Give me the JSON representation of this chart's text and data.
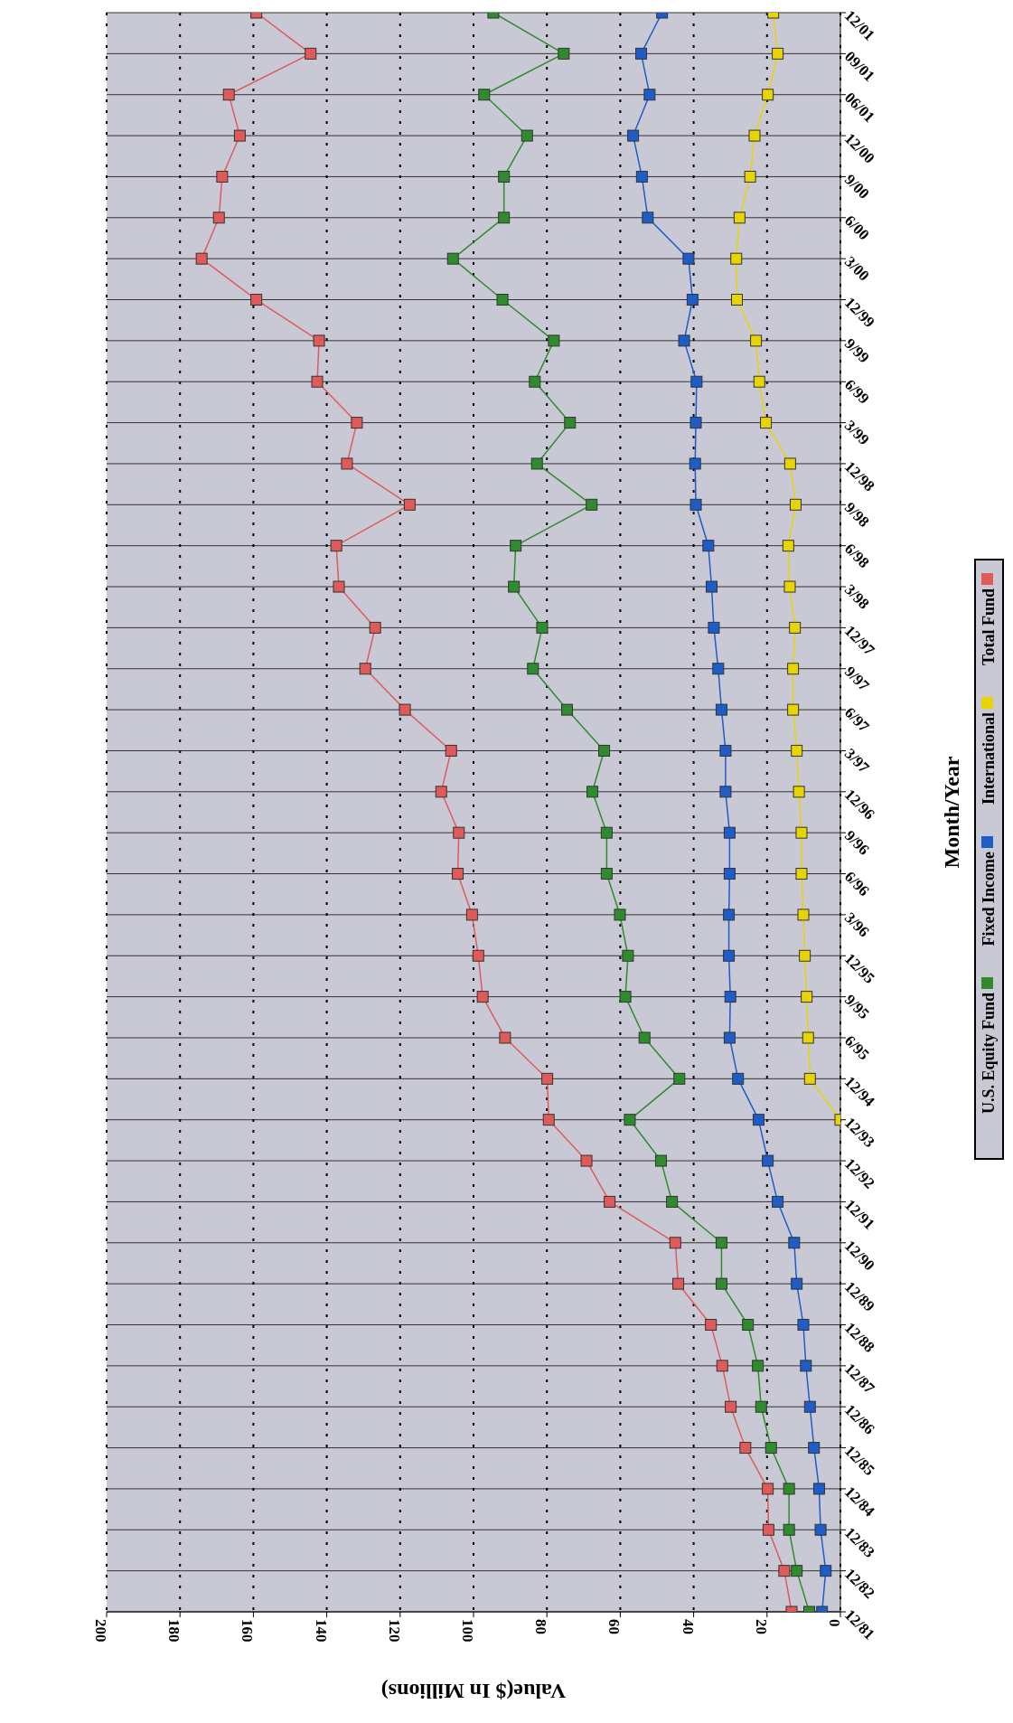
{
  "chart_data": {
    "type": "line",
    "orientation": "horizontal",
    "xlabel": "Value($ In Millions)",
    "ylabel": "Month/Year",
    "categories": [
      "12/01",
      "09/01",
      "06/01",
      "12/00",
      "9/00",
      "6/00",
      "3/00",
      "12/99",
      "9/99",
      "6/99",
      "3/99",
      "12/98",
      "9/98",
      "6/98",
      "3/98",
      "12/97",
      "9/97",
      "6/97",
      "3/97",
      "12/96",
      "9/96",
      "6/96",
      "3/96",
      "12/95",
      "9/95",
      "6/95",
      "12/94",
      "12/93",
      "12/92",
      "12/91",
      "12/90",
      "12/89",
      "12/88",
      "12/87",
      "12/86",
      "12/85",
      "12/84",
      "12/83",
      "12/82",
      "12/81"
    ],
    "series": [
      {
        "name": "U.S. Equity Fund",
        "color": "#2e8b2e",
        "values": [
          94.6,
          75.4,
          97.1,
          85.4,
          91.7,
          91.7,
          105.6,
          92.1,
          78.1,
          83.3,
          73.7,
          82.7,
          67.8,
          88.5,
          89.0,
          81.3,
          83.8,
          74.5,
          64.4,
          67.6,
          63.7,
          63.7,
          60.1,
          57.9,
          58.6,
          53.4,
          43.9,
          57.4,
          48.9,
          45.9,
          32.4,
          32.4,
          25.2,
          22.5,
          21.6,
          18.9,
          14.0,
          14.0,
          11.9,
          8.5
        ]
      },
      {
        "name": "Fixed Income",
        "color": "#1e5cc8",
        "values": [
          48.6,
          54.3,
          52.0,
          56.5,
          54.1,
          52.5,
          41.4,
          40.3,
          42.6,
          39.2,
          39.4,
          39.6,
          39.4,
          36.0,
          35.1,
          34.5,
          33.3,
          32.4,
          31.3,
          31.3,
          30.2,
          30.2,
          30.4,
          30.4,
          30.0,
          30.2,
          27.9,
          22.3,
          19.8,
          17.1,
          12.6,
          11.9,
          10.1,
          9.4,
          8.3,
          7.2,
          5.8,
          5.4,
          4.0,
          5.0
        ]
      },
      {
        "name": "International",
        "color": "#e8d400",
        "values": [
          18.3,
          17.1,
          19.8,
          23.4,
          24.6,
          27.5,
          28.4,
          28.2,
          23.0,
          22.1,
          20.3,
          13.7,
          12.2,
          14.2,
          13.8,
          12.4,
          12.9,
          12.9,
          11.9,
          11.3,
          10.6,
          10.6,
          10.1,
          9.7,
          9.2,
          8.8,
          8.3,
          0,
          null,
          null,
          null,
          null,
          null,
          null,
          null,
          null,
          null,
          null,
          null,
          null
        ]
      },
      {
        "name": "Total Fund",
        "color": "#e05a5a",
        "values": [
          159.2,
          144.4,
          166.7,
          163.7,
          168.5,
          169.4,
          174.1,
          159.2,
          142.1,
          142.6,
          131.8,
          134.5,
          117.4,
          137.4,
          136.7,
          126.8,
          129.5,
          118.7,
          106.1,
          108.8,
          104.0,
          104.3,
          100.4,
          98.7,
          97.5,
          91.4,
          79.9,
          79.5,
          69.2,
          62.9,
          45.0,
          44.2,
          35.3,
          32.2,
          29.9,
          25.9,
          19.8,
          19.6,
          15.3,
          13.3
        ]
      }
    ],
    "xlim": [
      200,
      0
    ],
    "xticks": [
      200,
      180,
      160,
      140,
      120,
      100,
      80,
      60,
      40,
      20,
      0
    ],
    "grid": true,
    "legend": "right",
    "marker": "square",
    "line_style": "solid"
  }
}
